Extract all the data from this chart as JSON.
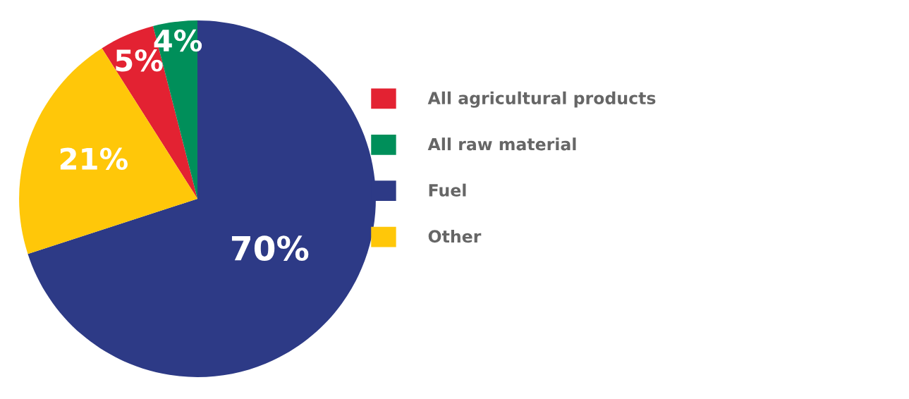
{
  "chart_data": {
    "type": "pie",
    "categories": [
      "All agricultural products",
      "All raw material",
      "Fuel",
      "Other"
    ],
    "values": [
      5,
      4,
      70,
      21
    ],
    "colors": [
      "#e32232",
      "#008f5a",
      "#2d3a86",
      "#ffc709"
    ],
    "value_labels": [
      "5%",
      "4%",
      "70%",
      "21%"
    ],
    "legend": "right"
  }
}
